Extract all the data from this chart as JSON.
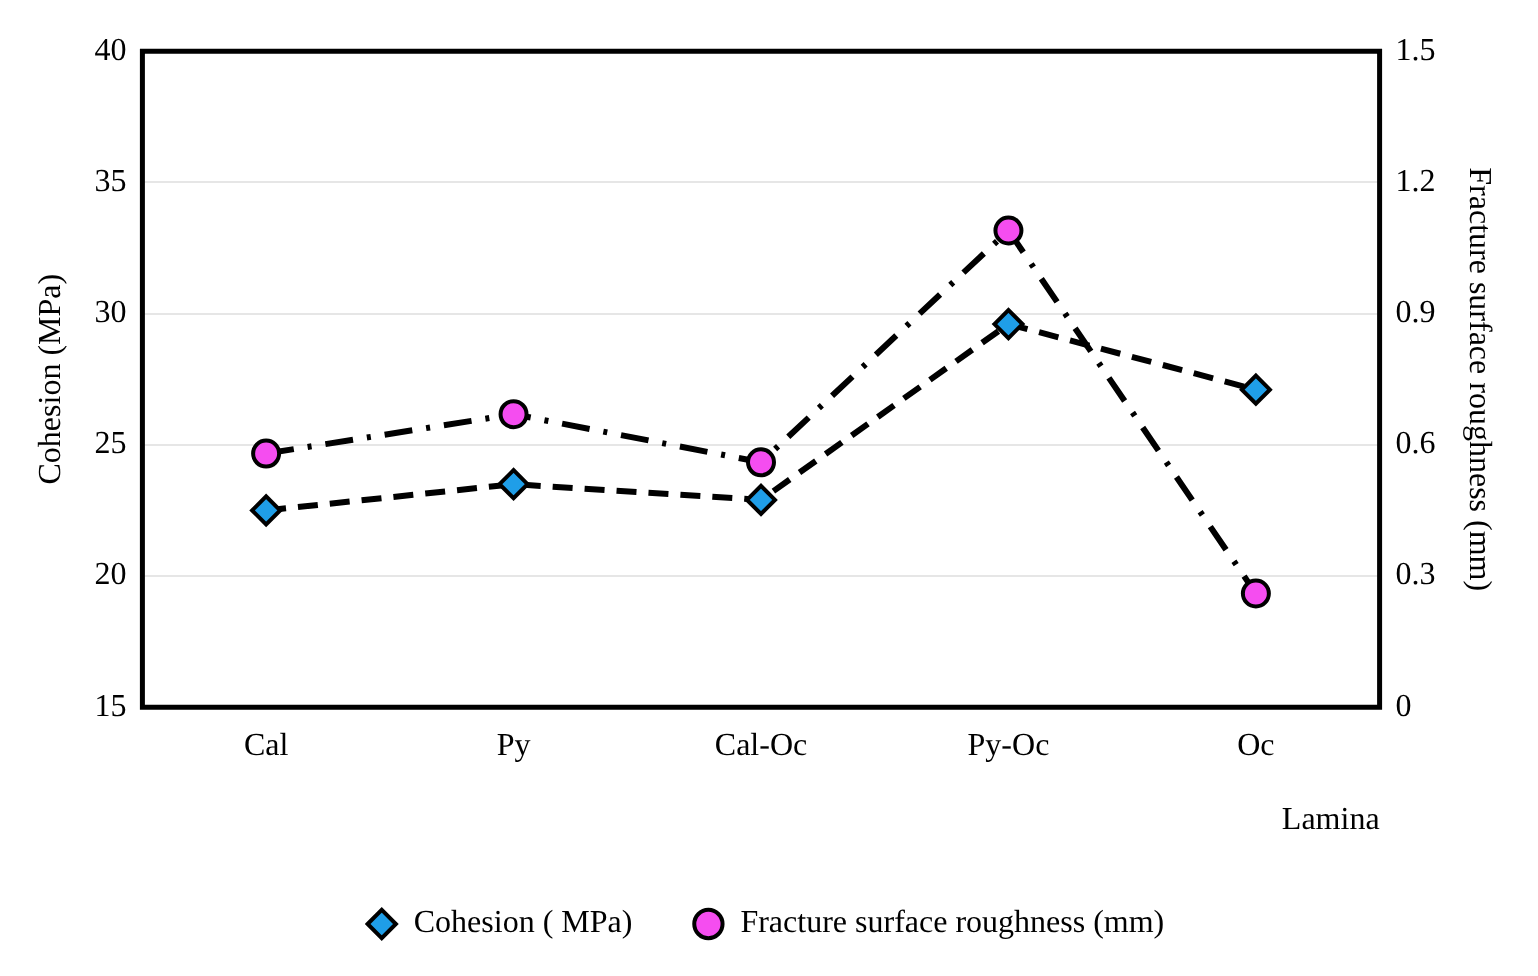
{
  "chart_data": {
    "type": "line",
    "categories": [
      "Cal",
      "Py",
      "Cal-Oc",
      "Py-Oc",
      "Oc"
    ],
    "xlabel": "Lamina",
    "ylabel": "Cohesion (MPa)",
    "y2label": "Fracture surface roughness (mm)",
    "ylim": [
      15,
      40
    ],
    "yticks": [
      15,
      20,
      25,
      30,
      35,
      40
    ],
    "y2lim": [
      0,
      1.5
    ],
    "y2ticks": [
      0,
      0.3,
      0.6,
      0.9,
      1.2,
      1.5
    ],
    "grid": "y",
    "legend": "bottom",
    "series": [
      {
        "name": "Cohesion ( MPa)",
        "color": "#1f9ee8",
        "values": [
          22.5,
          23.5,
          22.9,
          29.6,
          27.1
        ],
        "marker": "diamond",
        "line_style": "dashed"
      },
      {
        "name": "Fracture surface roughness (mm)",
        "color": "#f54df0",
        "values": [
          0.58,
          0.67,
          0.56,
          1.09,
          0.26
        ],
        "marker": "circle",
        "line_style": "dashdot",
        "axis": "y2"
      }
    ]
  }
}
